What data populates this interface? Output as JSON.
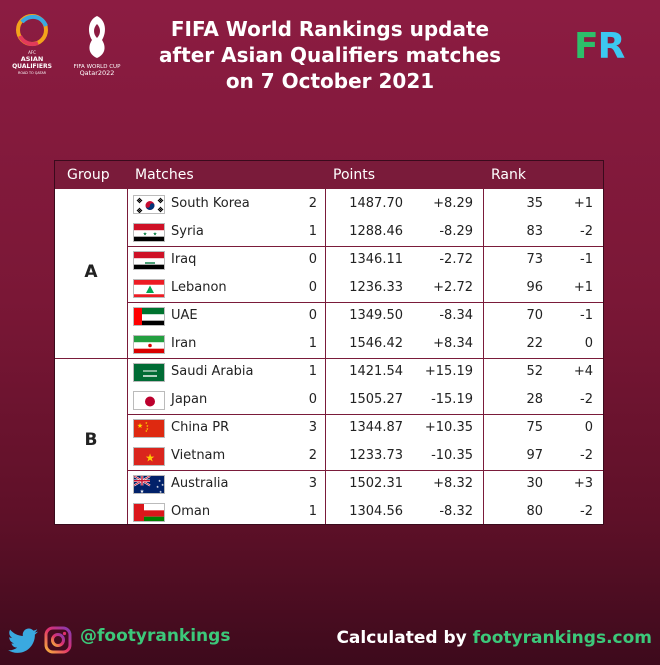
{
  "header": {
    "title_lines": [
      "FIFA World Rankings update",
      "after Asian Qualifiers matches",
      "on 7 October 2021"
    ],
    "brand_f": "F",
    "brand_r": "R",
    "afc_logo_text": [
      "AFC",
      "ASIAN",
      "QUALIFIERS",
      "ROAD TO QATAR"
    ],
    "wc_logo_text": [
      "FIFA WORLD CUP",
      "Qatar2022"
    ]
  },
  "table": {
    "headers": {
      "group": "Group",
      "matches": "Matches",
      "points": "Points",
      "rank": "Rank"
    },
    "groups": [
      {
        "label": "A",
        "rows": [
          {
            "team": "South Korea",
            "score": "2",
            "points": "1487.70",
            "change": "+8.29",
            "rank": "35",
            "rank_change": "+1",
            "flag": "south-korea"
          },
          {
            "team": "Syria",
            "score": "1",
            "points": "1288.46",
            "change": "-8.29",
            "rank": "83",
            "rank_change": "-2",
            "flag": "syria"
          },
          {
            "team": "Iraq",
            "score": "0",
            "points": "1346.11",
            "change": "-2.72",
            "rank": "73",
            "rank_change": "-1",
            "flag": "iraq"
          },
          {
            "team": "Lebanon",
            "score": "0",
            "points": "1236.33",
            "change": "+2.72",
            "rank": "96",
            "rank_change": "+1",
            "flag": "lebanon"
          },
          {
            "team": "UAE",
            "score": "0",
            "points": "1349.50",
            "change": "-8.34",
            "rank": "70",
            "rank_change": "-1",
            "flag": "uae"
          },
          {
            "team": "Iran",
            "score": "1",
            "points": "1546.42",
            "change": "+8.34",
            "rank": "22",
            "rank_change": "0",
            "flag": "iran"
          }
        ]
      },
      {
        "label": "B",
        "rows": [
          {
            "team": "Saudi Arabia",
            "score": "1",
            "points": "1421.54",
            "change": "+15.19",
            "rank": "52",
            "rank_change": "+4",
            "flag": "saudi-arabia"
          },
          {
            "team": "Japan",
            "score": "0",
            "points": "1505.27",
            "change": "-15.19",
            "rank": "28",
            "rank_change": "-2",
            "flag": "japan"
          },
          {
            "team": "China PR",
            "score": "3",
            "points": "1344.87",
            "change": "+10.35",
            "rank": "75",
            "rank_change": "0",
            "flag": "china"
          },
          {
            "team": "Vietnam",
            "score": "2",
            "points": "1233.73",
            "change": "-10.35",
            "rank": "97",
            "rank_change": "-2",
            "flag": "vietnam"
          },
          {
            "team": "Australia",
            "score": "3",
            "points": "1502.31",
            "change": "+8.32",
            "rank": "30",
            "rank_change": "+3",
            "flag": "australia"
          },
          {
            "team": "Oman",
            "score": "1",
            "points": "1304.56",
            "change": "-8.32",
            "rank": "80",
            "rank_change": "-2",
            "flag": "oman"
          }
        ]
      }
    ]
  },
  "footer": {
    "handle": "@footyrankings",
    "calc_prefix": "Calculated by ",
    "calc_site": "footyrankings.com"
  },
  "colors": {
    "background": "#7a1736",
    "header_row": "#7a1b3a",
    "accent_green": "#3cc87a",
    "accent_blue": "#3cc8f0"
  }
}
